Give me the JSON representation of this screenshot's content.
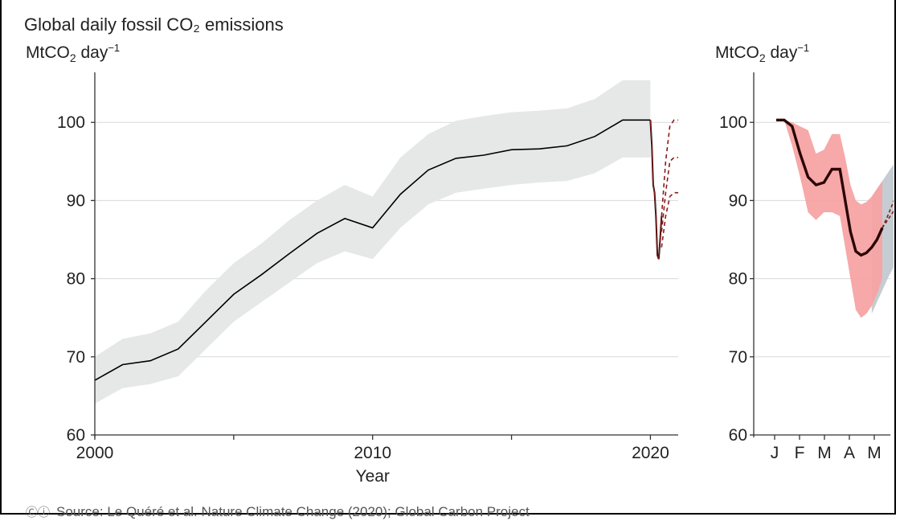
{
  "title": "Global daily fossil CO₂ emissions",
  "unit_text": {
    "prefix": "MtCO",
    "sub": "2",
    "mid": " day",
    "sup": "−1"
  },
  "footer": {
    "cc_icons": "Ⓒⓘ",
    "text": "Source: Le Quéré et al. Nature Climate Change (2020); Global Carbon Project"
  },
  "chart_data": [
    {
      "type": "line",
      "xlabel": "Year",
      "x_ticks": [
        "2000",
        "2010",
        "2020"
      ],
      "y_ticks": [
        60,
        70,
        80,
        90,
        100
      ],
      "ylim": [
        60,
        107
      ],
      "xlim": [
        2000,
        2021
      ],
      "grid": "horizontal",
      "colors": {
        "line": "#000000",
        "band": "#e6e8e8",
        "dashed": "#8b1a1a",
        "grid": "#d8d8d8"
      },
      "series": [
        {
          "x": [
            2000,
            2001,
            2002,
            2003,
            2004,
            2005,
            2006,
            2007,
            2008,
            2009,
            2010,
            2011,
            2012,
            2013,
            2014,
            2015,
            2016,
            2017,
            2018,
            2019,
            2020
          ],
          "values": [
            67.0,
            69.0,
            69.5,
            71.0,
            74.5,
            78.0,
            80.5,
            83.2,
            85.8,
            87.7,
            86.5,
            90.8,
            93.9,
            95.4,
            95.8,
            96.5,
            96.6,
            97.0,
            98.2,
            100.3,
            100.3
          ],
          "band_low": [
            64.0,
            66.0,
            66.5,
            67.5,
            71.0,
            74.5,
            77.0,
            79.5,
            82.0,
            83.5,
            82.5,
            86.5,
            89.5,
            91.0,
            91.5,
            92.0,
            92.3,
            92.5,
            93.5,
            95.5,
            95.5
          ],
          "band_high": [
            70.0,
            72.3,
            73.0,
            74.5,
            78.5,
            82.0,
            84.5,
            87.5,
            90.0,
            92.0,
            90.5,
            95.5,
            98.5,
            100.2,
            100.8,
            101.3,
            101.5,
            101.8,
            103.0,
            105.4,
            105.4
          ]
        }
      ],
      "drop_2020": {
        "x": [
          2020.0,
          2020.05,
          2020.1,
          2020.15,
          2020.2,
          2020.25,
          2020.3,
          2020.35,
          2020.4
        ],
        "values": [
          100.3,
          97.0,
          92.0,
          91.0,
          88.0,
          83.0,
          82.5,
          85.0,
          88.0
        ]
      },
      "projections": [
        {
          "x": [
            2020.4,
            2020.55,
            2020.7,
            2020.85,
            2021.0
          ],
          "values": [
            88.0,
            95.0,
            99.5,
            100.3,
            100.3
          ]
        },
        {
          "x": [
            2020.4,
            2020.55,
            2020.7,
            2020.85,
            2021.0
          ],
          "values": [
            86.0,
            91.0,
            95.0,
            95.5,
            95.5
          ]
        },
        {
          "x": [
            2020.4,
            2020.55,
            2020.7,
            2020.85,
            2021.0
          ],
          "values": [
            84.0,
            88.0,
            90.5,
            91.0,
            91.0
          ]
        }
      ]
    },
    {
      "type": "line",
      "x_ticks": [
        "J",
        "F",
        "M",
        "A",
        "M"
      ],
      "y_ticks": [
        60,
        70,
        80,
        90,
        100
      ],
      "ylim": [
        60,
        107
      ],
      "xlim": [
        0,
        4.5
      ],
      "grid": "horizontal",
      "colors": {
        "line": "#2a0505",
        "band": "#f7a3a3",
        "grey_band": "#c5cdd2",
        "dashed": "#8b1a1a",
        "grid": "#d8d8d8"
      },
      "series": [
        {
          "x": [
            0.0,
            0.3,
            0.6,
            0.9,
            1.2,
            1.5,
            1.8,
            2.1,
            2.4,
            2.6,
            2.8,
            3.0,
            3.2,
            3.4,
            3.6,
            3.8,
            4.0
          ],
          "values": [
            100.3,
            100.3,
            99.5,
            96.0,
            93.0,
            92.0,
            92.3,
            94.0,
            94.0,
            90.0,
            86.0,
            83.5,
            83.0,
            83.3,
            84.0,
            85.0,
            86.5
          ],
          "band_low": [
            100.3,
            100.3,
            97.0,
            93.0,
            88.5,
            87.5,
            88.5,
            88.5,
            88.0,
            84.0,
            80.0,
            76.0,
            75.0,
            75.5,
            76.5,
            78.0,
            80.0
          ],
          "band_high": [
            100.3,
            100.3,
            100.0,
            99.5,
            99.0,
            96.0,
            96.5,
            98.5,
            98.5,
            95.5,
            92.0,
            90.0,
            89.5,
            89.8,
            90.5,
            91.5,
            92.5
          ]
        }
      ],
      "grey_band": {
        "x": [
          3.6,
          3.8,
          4.0,
          4.2,
          4.5
        ],
        "low": [
          75.5,
          77.0,
          78.5,
          80.0,
          82.0
        ],
        "high": [
          90.5,
          91.5,
          92.5,
          93.5,
          95.0
        ]
      },
      "projections": [
        {
          "x": [
            4.0,
            4.2,
            4.5
          ],
          "values": [
            86.5,
            88.0,
            90.5
          ]
        },
        {
          "x": [
            4.0,
            4.2,
            4.5
          ],
          "values": [
            86.5,
            87.5,
            89.0
          ]
        }
      ]
    }
  ]
}
